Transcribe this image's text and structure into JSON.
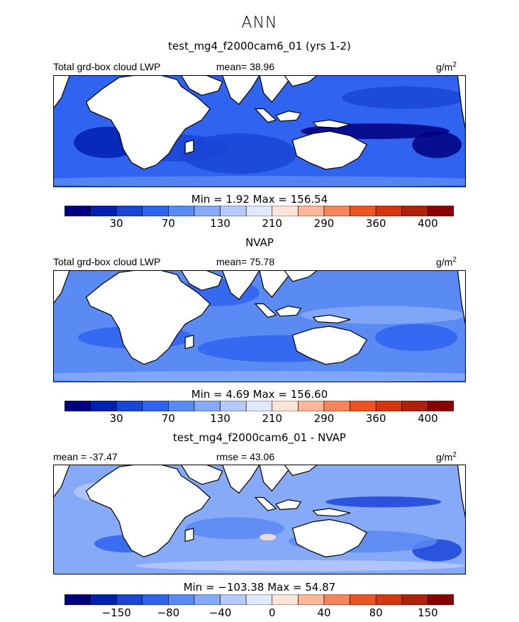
{
  "figure": {
    "title": "ANN"
  },
  "colors": {
    "palette": [
      "#00007f",
      "#0020b4",
      "#1a45d6",
      "#2f63f0",
      "#5a8af3",
      "#86aaf7",
      "#b5c9fb",
      "#dfe8fd",
      "#fde4d8",
      "#fbb79a",
      "#f5855c",
      "#ee5324",
      "#d5350f",
      "#b1200a",
      "#8b0000"
    ],
    "land": "#ffffff",
    "coast": "#000000"
  },
  "panels": [
    {
      "title": "test_mg4_f2000cam6_01 (yrs 1-2)",
      "left_label": "Total grd-box cloud LWP",
      "center_label": "mean=  38.96",
      "units_label": "g/m",
      "units_sup": "2",
      "stats": "Min =    1.92 Max = 156.54",
      "ticks": [
        "30",
        "70",
        "130",
        "210",
        "290",
        "360",
        "400"
      ],
      "ocean_shade": "#2f63f0"
    },
    {
      "title": "NVAP",
      "left_label": "Total grd-box cloud LWP",
      "center_label": "mean=  75.78",
      "units_label": "g/m",
      "units_sup": "2",
      "stats": "Min =    4.69 Max = 156.60",
      "ticks": [
        "30",
        "70",
        "130",
        "210",
        "290",
        "360",
        "400"
      ],
      "ocean_shade": "#5a8af3"
    },
    {
      "title": "test_mg4_f2000cam6_01 - NVAP",
      "left_label": "mean = -37.47",
      "center_label": "rmse =  43.06",
      "units_label": "g/m",
      "units_sup": "2",
      "stats": "Min = −103.38 Max =  54.87",
      "ticks": [
        "−150",
        "−80",
        "−40",
        "0",
        "40",
        "80",
        "150"
      ],
      "ocean_shade": "#86aaf7"
    }
  ],
  "chart_data": [
    {
      "type": "heatmap",
      "title": "test_mg4_f2000cam6_01 (yrs 1-2)",
      "variable": "Total grd-box cloud LWP",
      "units": "g/m2",
      "mean": 38.96,
      "min": 1.92,
      "max": 156.54,
      "colorbar_ticks": [
        30,
        70,
        130,
        210,
        290,
        360,
        400
      ]
    },
    {
      "type": "heatmap",
      "title": "NVAP",
      "variable": "Total grd-box cloud LWP",
      "units": "g/m2",
      "mean": 75.78,
      "min": 4.69,
      "max": 156.6,
      "colorbar_ticks": [
        30,
        70,
        130,
        210,
        290,
        360,
        400
      ]
    },
    {
      "type": "heatmap",
      "title": "test_mg4_f2000cam6_01 - NVAP",
      "units": "g/m2",
      "mean": -37.47,
      "rmse": 43.06,
      "min": -103.38,
      "max": 54.87,
      "colorbar_ticks": [
        -150,
        -80,
        -40,
        0,
        40,
        80,
        150
      ]
    }
  ]
}
